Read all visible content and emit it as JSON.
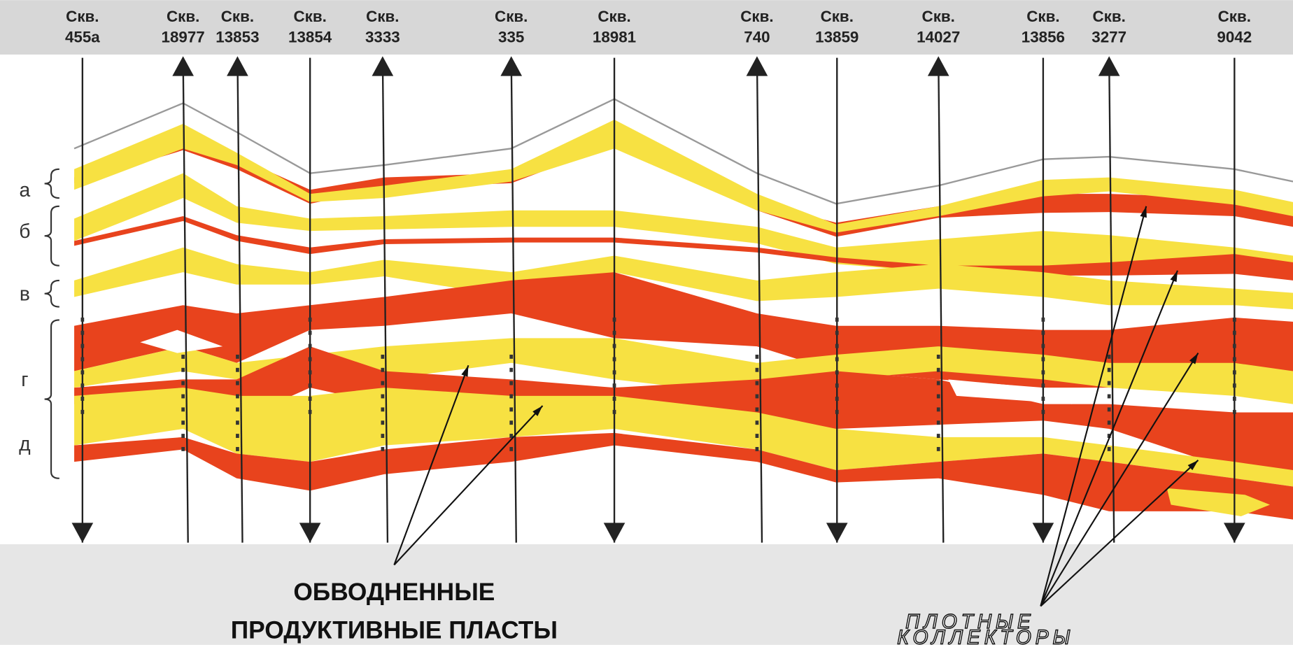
{
  "wells": [
    {
      "prefix": "Скв.",
      "number": "455а"
    },
    {
      "prefix": "Скв.",
      "number": "18977"
    },
    {
      "prefix": "Скв.",
      "number": "13853"
    },
    {
      "prefix": "Скв.",
      "number": "13854"
    },
    {
      "prefix": "Скв.",
      "number": "3333"
    },
    {
      "prefix": "Скв.",
      "number": "335"
    },
    {
      "prefix": "Скв.",
      "number": "18981"
    },
    {
      "prefix": "Скв.",
      "number": "740"
    },
    {
      "prefix": "Скв.",
      "number": "13859"
    },
    {
      "prefix": "Скв.",
      "number": "14027"
    },
    {
      "prefix": "Скв.",
      "number": "13856"
    },
    {
      "prefix": "Скв.",
      "number": "3277"
    },
    {
      "prefix": "Скв.",
      "number": "9042"
    }
  ],
  "layers": [
    "а",
    "б",
    "в",
    "г",
    "д"
  ],
  "annotations": {
    "flooded": [
      "ОБВОДНЕННЫЕ",
      "ПРОДУКТИВНЫЕ ПЛАСТЫ"
    ],
    "tight": [
      "ПЛОТНЫЕ",
      "КОЛЛЕКТОРЫ"
    ]
  }
}
